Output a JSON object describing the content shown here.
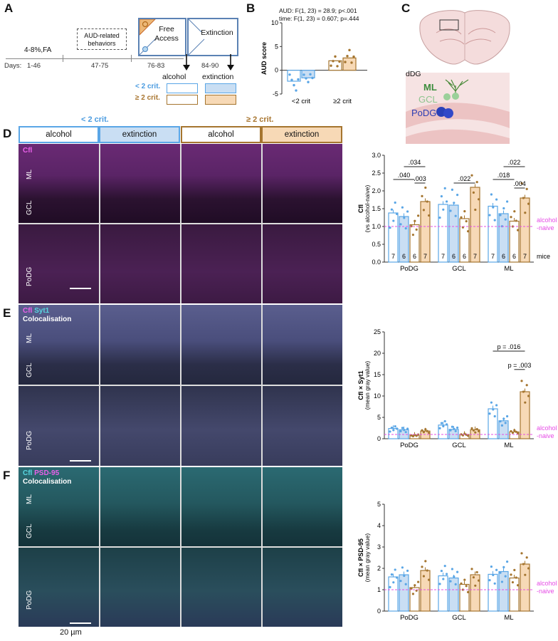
{
  "panel_a": {
    "label": "A",
    "fa_label": "4-8%,FA",
    "aud_box_label": "AUD-related behaviors",
    "free_access_label": "Free Access",
    "extinction_label": "Extinction",
    "days_label": "Days:",
    "day_ranges": [
      "1-46",
      "47-75",
      "76-83",
      "84-90"
    ],
    "legend_alcohol": "alcohol",
    "legend_extinction": "extinction",
    "legend_lt2": "< 2 crit.",
    "legend_ge2": "≥ 2 crit."
  },
  "panel_b": {
    "label": "B",
    "stats_line1": "AUD: F(1, 23) = 28.9; p<.001",
    "stats_line2": "time: F(1, 23) = 0.607; p=.444"
  },
  "panel_c": {
    "label": "C",
    "dDG": "dDG",
    "ML": "ML",
    "GCL": "GCL",
    "PoDG": "PoDG"
  },
  "panel_d": {
    "label": "D",
    "group_lt2": "< 2 crit.",
    "group_ge2": "≥ 2 crit.",
    "headers": [
      "alcohol",
      "extinction",
      "alcohol",
      "extinction"
    ],
    "stain": "Cfl",
    "layers_top": [
      "ML",
      "GCL"
    ],
    "layer_bottom": "PoDG"
  },
  "panel_e": {
    "label": "E",
    "stain_a": "Cfl",
    "stain_b": "Syt1",
    "coloc": "Colocalisation",
    "layers_top": [
      "ML",
      "GCL"
    ],
    "layer_bottom": "PoDG"
  },
  "panel_f": {
    "label": "F",
    "stain_a": "Cfl",
    "stain_b": "PSD-95",
    "coloc": "Colocalisation",
    "layers_top": [
      "ML",
      "GCL"
    ],
    "layer_bottom": "PoDG",
    "scale_label": "20 µm"
  },
  "colors": {
    "lt2_alcohol": "#ffffff",
    "lt2_extinction": "#c9def3",
    "ge2_alcohol": "#ffffff",
    "ge2_extinction": "#f7d9b6",
    "blue_edge": "#5aa6e6",
    "brown_edge": "#a5752f",
    "magenta": "#e64ce6",
    "cyan": "#38c7d0"
  },
  "chart_data": [
    {
      "type": "bar",
      "panel": "B",
      "categories": [
        "<2 crit",
        "≥2 crit"
      ],
      "series": [
        {
          "values": [
            -2.3,
            2.0
          ]
        },
        {
          "values": [
            -1.6,
            2.6
          ]
        }
      ],
      "ylabel": "AUD score",
      "ylim": [
        -5,
        10
      ],
      "yticks": [
        -5,
        0,
        5,
        10
      ]
    },
    {
      "type": "bar",
      "panel": "D",
      "categories": [
        "PoDG",
        "GCL",
        "ML"
      ],
      "series": [
        {
          "values": [
            1.38,
            1.62,
            1.57
          ]
        },
        {
          "values": [
            1.28,
            1.6,
            1.36
          ]
        },
        {
          "values": [
            1.05,
            1.22,
            1.15
          ]
        },
        {
          "values": [
            1.7,
            2.1,
            1.8
          ]
        }
      ],
      "ylabel": "Cfl",
      "ylabel2": "(vs alcohol-naive)",
      "ylim": [
        0.0,
        3.0
      ],
      "yticks": [
        "0.0",
        "0.5",
        "1.0",
        "1.5",
        "2.0",
        "2.5",
        "3.0"
      ],
      "n_labels": [
        "7",
        "6",
        "6",
        "7"
      ],
      "n_suffix": "mice",
      "comparisons": [
        ".040",
        ".034",
        ".003",
        ".022",
        ".018",
        ".022",
        ".004"
      ],
      "baseline": 1.0,
      "baseline_label": [
        "alcohol",
        "-naive"
      ]
    },
    {
      "type": "bar",
      "panel": "E",
      "categories": [
        "PoDG",
        "GCL",
        "ML"
      ],
      "series": [
        {
          "values": [
            2.4,
            3.2,
            7.0
          ]
        },
        {
          "values": [
            2.1,
            2.2,
            4.2
          ]
        },
        {
          "values": [
            0.8,
            1.0,
            1.6
          ]
        },
        {
          "values": [
            1.8,
            2.1,
            11.0
          ]
        }
      ],
      "ylabel": "Cfl × Syt1",
      "ylabel2": "(mean gray value)",
      "ylim": [
        0,
        25
      ],
      "yticks": [
        "0",
        "5",
        "10",
        "15",
        "20",
        "25"
      ],
      "comparisons": [
        "p = .016",
        "p = .003"
      ],
      "baseline": 1.0,
      "baseline_label": [
        "alcohol",
        "-naive"
      ]
    },
    {
      "type": "bar",
      "panel": "F",
      "categories": [
        "PoDG",
        "GCL",
        "ML"
      ],
      "series": [
        {
          "values": [
            1.6,
            1.65,
            1.72
          ]
        },
        {
          "values": [
            1.7,
            1.55,
            1.85
          ]
        },
        {
          "values": [
            1.1,
            1.25,
            1.55
          ]
        },
        {
          "values": [
            1.9,
            1.7,
            2.2
          ]
        }
      ],
      "ylabel": "Cfl × PSD-95",
      "ylabel2": "(mean gray value)",
      "ylim": [
        0,
        5
      ],
      "yticks": [
        "0",
        "1",
        "2",
        "3",
        "4",
        "5"
      ],
      "baseline": 1.0,
      "baseline_label": [
        "alcohol",
        "-naive"
      ]
    }
  ]
}
